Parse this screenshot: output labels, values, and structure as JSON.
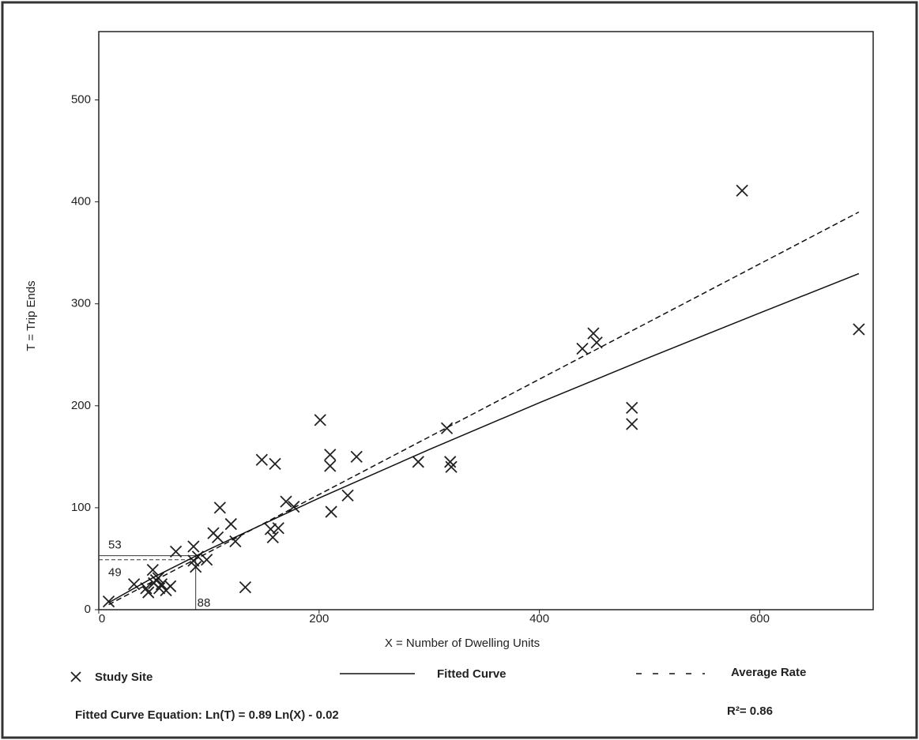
{
  "chart_data": {
    "type": "scatter",
    "xlabel": "X = Number of Dwelling Units",
    "ylabel": "T = Trip Ends",
    "xlim": [
      0,
      703
    ],
    "ylim": [
      0,
      567
    ],
    "xticks": [
      0,
      200,
      400,
      600
    ],
    "yticks": [
      0,
      100,
      200,
      300,
      400,
      500
    ],
    "series": [
      {
        "name": "Study Site",
        "color": "#222222",
        "x": [
          9,
          32,
          43,
          45,
          49,
          50,
          52,
          54,
          55,
          57,
          61,
          65,
          70,
          86,
          86,
          88,
          90,
          98,
          104,
          108,
          110,
          120,
          124,
          133,
          148,
          160,
          156,
          158,
          163,
          170,
          177,
          201,
          210,
          210,
          211,
          226,
          234,
          290,
          316,
          319,
          320,
          439,
          449,
          452,
          484,
          484,
          584,
          690
        ],
        "values": [
          8,
          25,
          21,
          17,
          39,
          26,
          29,
          31,
          21,
          25,
          19,
          23,
          57,
          62,
          48,
          42,
          52,
          49,
          75,
          71,
          100,
          84,
          67,
          22,
          147,
          143,
          79,
          71,
          80,
          106,
          101,
          186,
          152,
          141,
          96,
          112,
          150,
          145,
          178,
          145,
          140,
          256,
          271,
          262,
          198,
          182,
          411,
          275
        ]
      },
      {
        "name": "Fitted Curve",
        "color": "#111111",
        "x": [
          9,
          50,
          100,
          200,
          300,
          400,
          500,
          600,
          690
        ],
        "values": [
          6.9,
          31.9,
          59.1,
          109.5,
          157.1,
          203,
          247.5,
          291,
          329.6
        ]
      },
      {
        "name": "Average Rate",
        "color": "#111111",
        "x": [
          9,
          690
        ],
        "values": [
          5,
          390
        ]
      }
    ],
    "reference": {
      "x": 88,
      "fitted_y": 53,
      "average_y": 49
    },
    "equation": "Fitted Curve Equation: Ln(T) = 0.89 Ln(X) - 0.02",
    "r_squared": "R²= 0.86"
  }
}
